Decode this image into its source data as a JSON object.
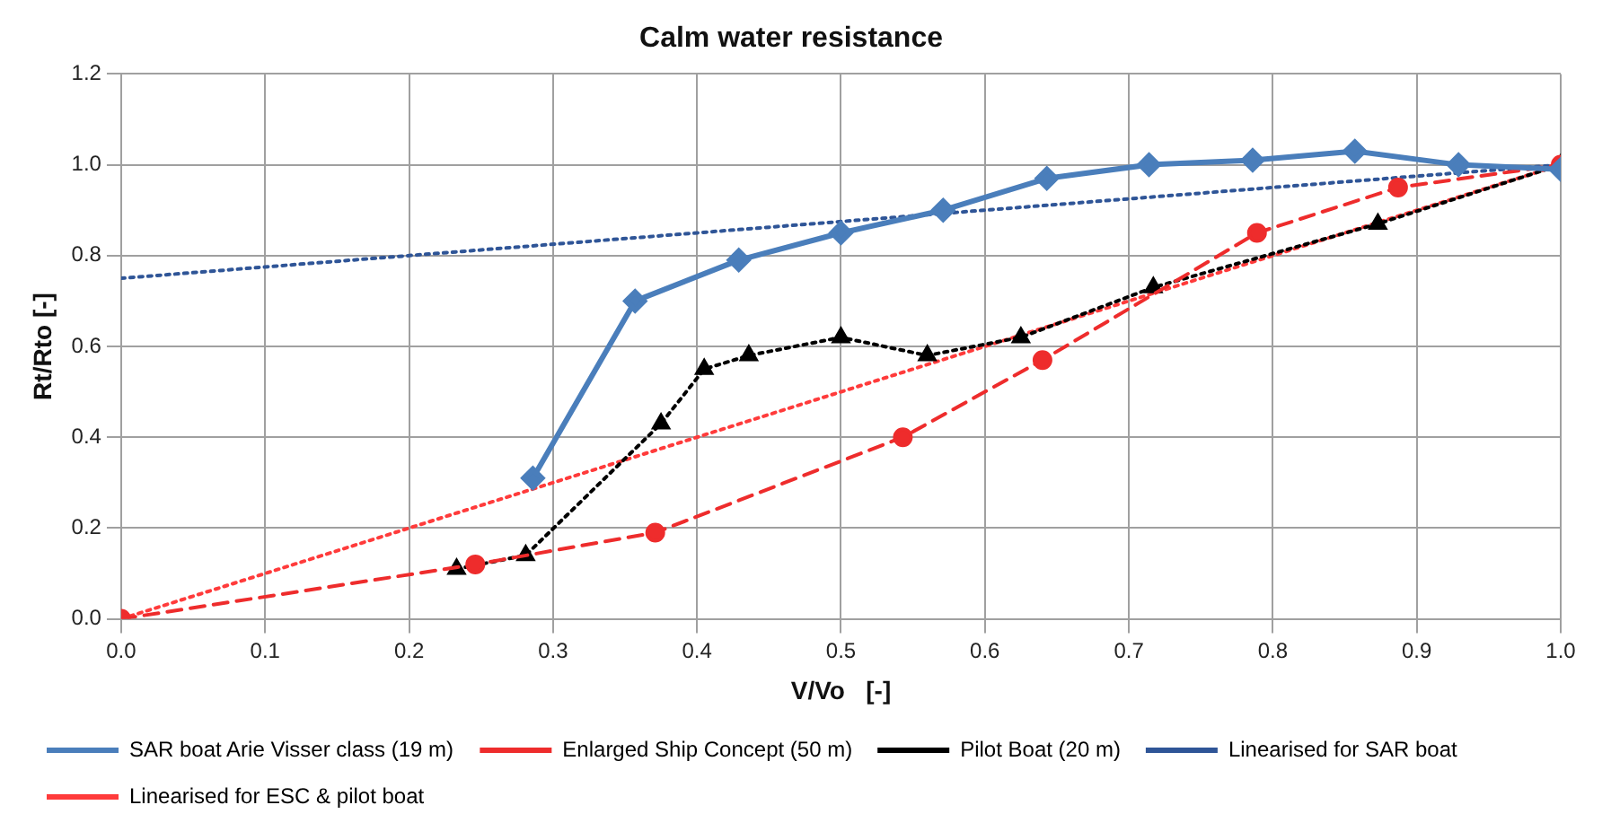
{
  "chart_data": {
    "type": "line",
    "title": "Calm water resistance",
    "xlabel": "V/Vo   [-]",
    "ylabel": "Rt/Rto [-]",
    "xlim": [
      0,
      1
    ],
    "xticks": [
      {
        "value": 0,
        "label": "0.0"
      },
      0.1,
      0.2,
      0.3,
      0.4,
      0.5,
      0.6,
      0.7,
      0.8,
      0.9,
      {
        "value": 1,
        "label": "1.0"
      }
    ],
    "ylim": [
      0,
      1.2
    ],
    "yticks": [
      {
        "value": 0,
        "label": "0.0"
      },
      0.2,
      0.4,
      0.6,
      0.8,
      {
        "value": 1,
        "label": "1.0"
      },
      1.2
    ],
    "grid": true,
    "legend": "bottom",
    "series": [
      {
        "name": "SAR boat Arie Visser class (19 m)",
        "color": "#4a7ebb",
        "marker": "diamond",
        "line_style": "solid",
        "x": [
          0.286,
          0.357,
          0.429,
          0.5,
          0.571,
          0.643,
          0.714,
          0.786,
          0.857,
          0.929,
          1.0
        ],
        "values": [
          0.31,
          0.7,
          0.79,
          0.85,
          0.9,
          0.97,
          1.0,
          1.01,
          1.03,
          1.0,
          0.99
        ]
      },
      {
        "name": "Enlarged Ship Concept (50 m)",
        "color": "#ee2c2c",
        "marker": "circle",
        "line_style": "dashed",
        "x": [
          0,
          0.246,
          0.371,
          0.543,
          0.64,
          0.789,
          0.887,
          1.0
        ],
        "values": [
          0,
          0.12,
          0.19,
          0.4,
          0.57,
          0.85,
          0.95,
          1.0
        ]
      },
      {
        "name": "Pilot Boat (20 m)",
        "color": "#000000",
        "marker": "triangle",
        "line_style": "dotted",
        "x": [
          0.233,
          0.281,
          0.375,
          0.405,
          0.436,
          0.5,
          0.56,
          0.625,
          0.717,
          0.873,
          1.0
        ],
        "values": [
          0.11,
          0.14,
          0.43,
          0.55,
          0.58,
          0.62,
          0.58,
          0.62,
          0.73,
          0.87,
          1.0
        ]
      },
      {
        "name": "Linearised for SAR boat",
        "color": "#2f5597",
        "marker": "none",
        "line_style": "dotted",
        "x": [
          0,
          1
        ],
        "values": [
          0.75,
          1.0
        ]
      },
      {
        "name": "Linearised for ESC & pilot boat",
        "color": "#ff3b3b",
        "marker": "none",
        "line_style": "dotted",
        "x": [
          0,
          1
        ],
        "values": [
          0,
          1.0
        ]
      }
    ]
  }
}
